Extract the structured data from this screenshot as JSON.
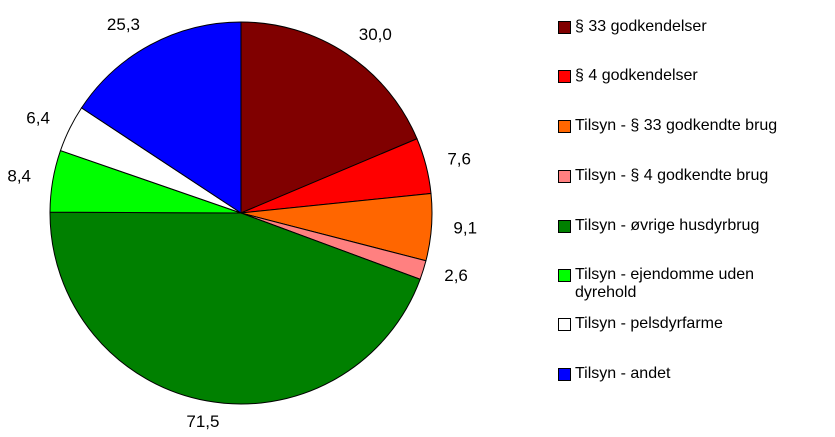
{
  "chart_data": {
    "type": "pie",
    "categories": [
      "§ 33 godkendelser",
      "§ 4 godkendelser",
      "Tilsyn - § 33 godkendte brug",
      "Tilsyn - § 4 godkendte brug",
      "Tilsyn - øvrige husdyrbrug",
      "Tilsyn - ejendomme uden dyrehold",
      "Tilsyn - pelsdyrfarme",
      "Tilsyn - andet"
    ],
    "values": [
      30.0,
      7.6,
      9.1,
      2.6,
      71.5,
      8.4,
      6.4,
      25.3
    ],
    "value_labels": [
      "30,0",
      "7,6",
      "9,1",
      "2,6",
      "71,5",
      "8,4",
      "6,4",
      "25,3"
    ],
    "colors": [
      "#800000",
      "#ff0000",
      "#ff6600",
      "#ff8080",
      "#008000",
      "#00ff00",
      "#ffffff",
      "#0000ff"
    ],
    "legend": "right"
  }
}
